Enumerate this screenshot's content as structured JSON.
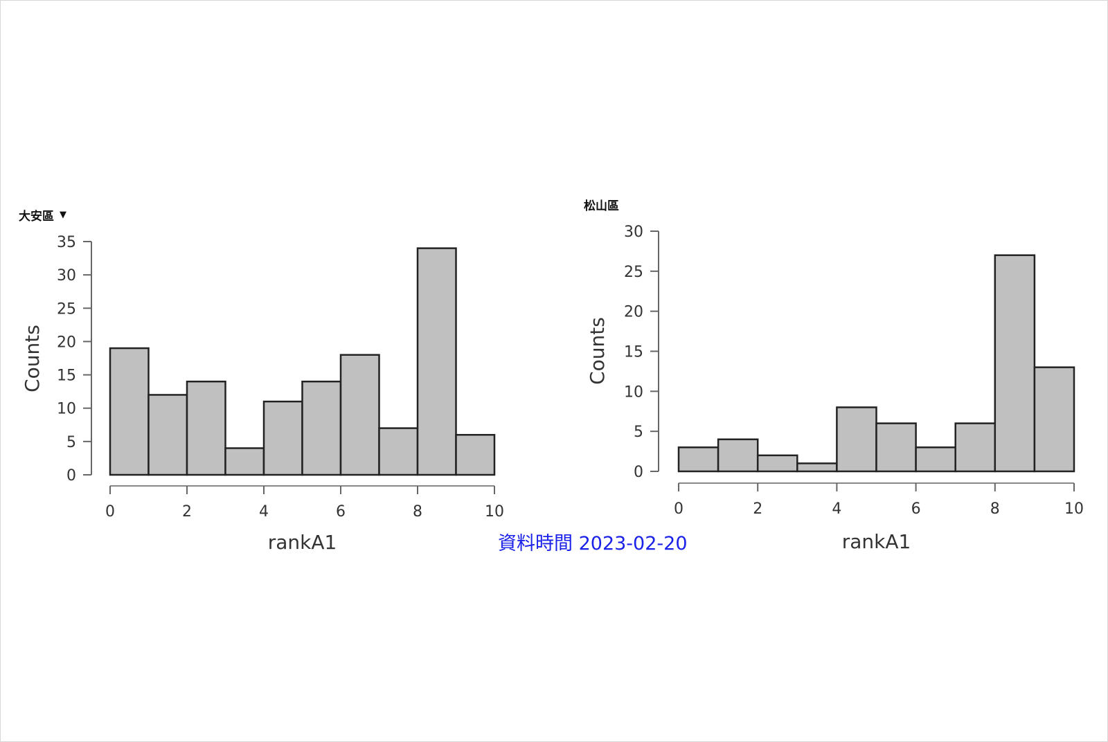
{
  "footer": {
    "date_text": "資料時間 2023-02-20"
  },
  "chart_data": [
    {
      "type": "bar",
      "title": "大安區",
      "has_dropdown": true,
      "xlabel": "rankA1",
      "ylabel": "Counts",
      "xlim": [
        0,
        10
      ],
      "ylim": [
        0,
        35
      ],
      "xticks": [
        0,
        2,
        4,
        6,
        8,
        10
      ],
      "yticks": [
        0,
        5,
        10,
        15,
        20,
        25,
        30,
        35
      ],
      "bin_edges": [
        0,
        1,
        2,
        3,
        4,
        5,
        6,
        7,
        8,
        9,
        10
      ],
      "values": [
        19,
        12,
        14,
        4,
        11,
        14,
        18,
        7,
        34,
        6
      ],
      "bar_color": "#c0c0c0",
      "edge_color": "#222222",
      "grid": false
    },
    {
      "type": "bar",
      "title": "松山區",
      "has_dropdown": false,
      "xlabel": "rankA1",
      "ylabel": "Counts",
      "xlim": [
        0,
        10
      ],
      "ylim": [
        0,
        30
      ],
      "xticks": [
        0,
        2,
        4,
        6,
        8,
        10
      ],
      "yticks": [
        0,
        5,
        10,
        15,
        20,
        25,
        30
      ],
      "bin_edges": [
        0,
        1,
        2,
        3,
        4,
        5,
        6,
        7,
        8,
        9,
        10
      ],
      "values": [
        3,
        4,
        2,
        1,
        8,
        6,
        3,
        6,
        27,
        13
      ],
      "bar_color": "#c0c0c0",
      "edge_color": "#222222",
      "grid": false
    }
  ]
}
